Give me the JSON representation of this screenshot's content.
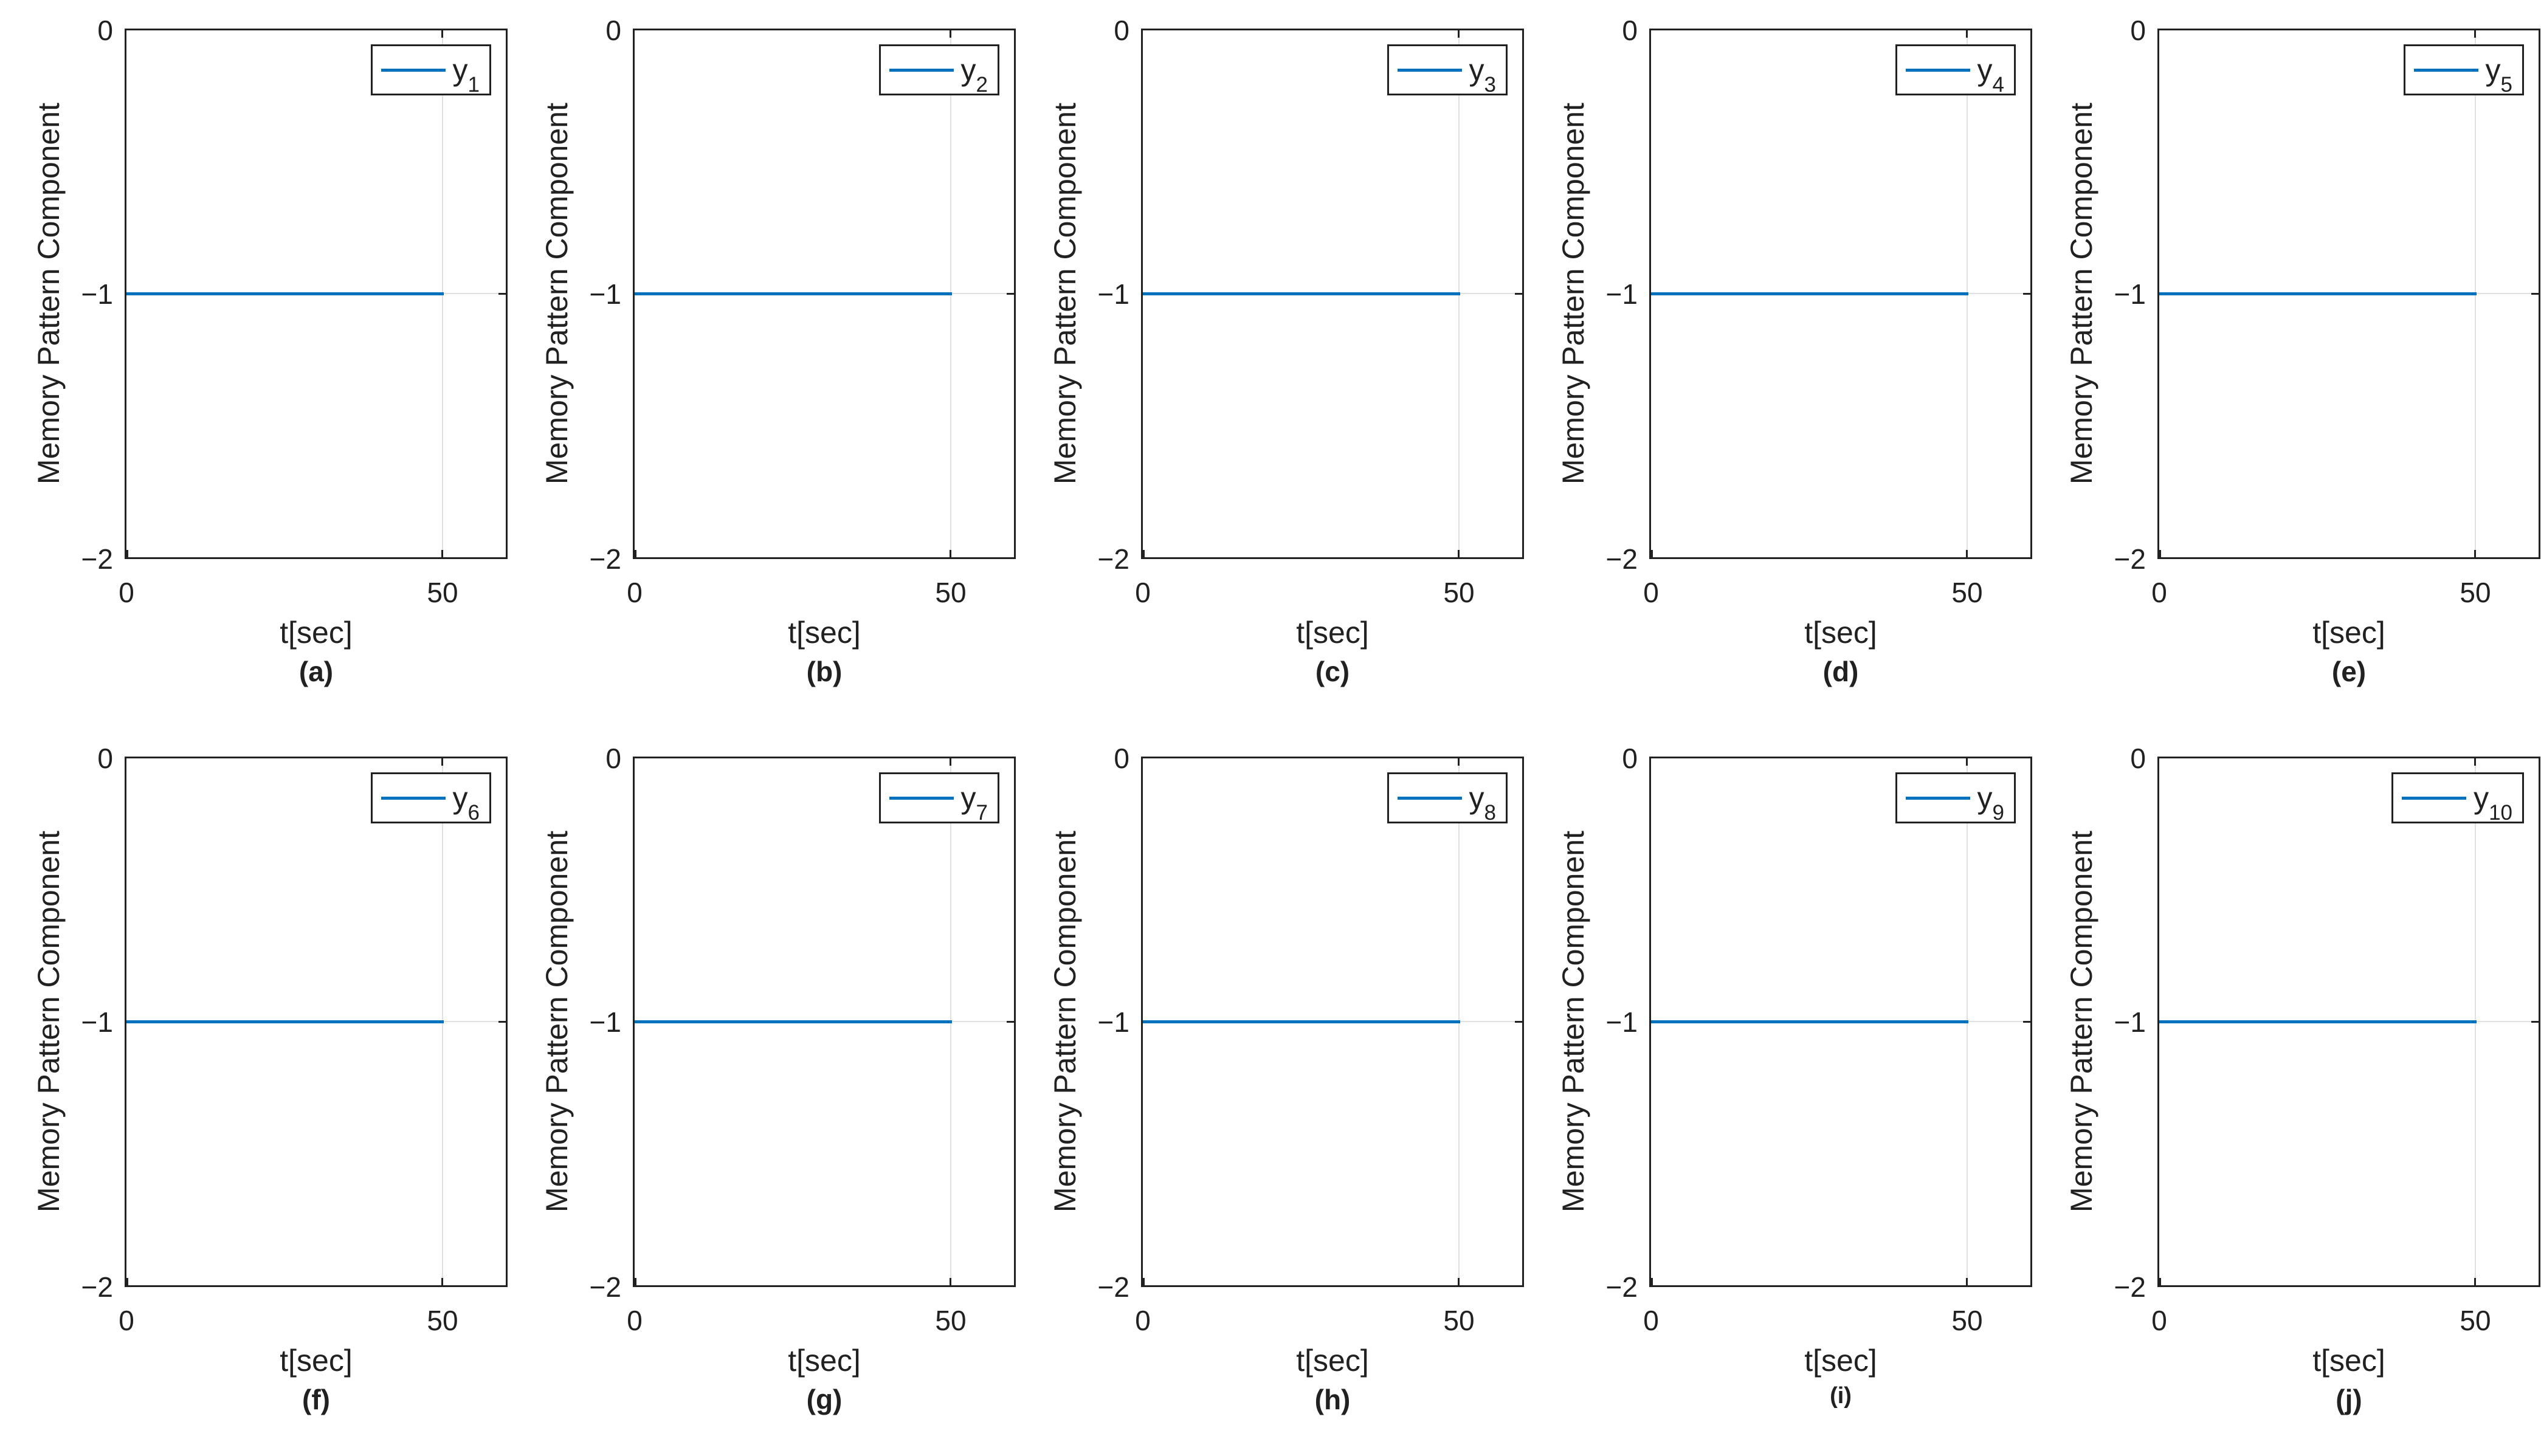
{
  "figure": {
    "rows": 2,
    "columns": 5,
    "background": "#FFFFFF"
  },
  "colors": {
    "line": "#0072BD",
    "axis": "#212121",
    "grid": "#E0E0E0",
    "text": "#212121",
    "background": "#FFFFFF"
  },
  "axes": {
    "ylabel": "Memory Pattern Component",
    "xlabel": "t[sec]",
    "ytick_labels": [
      "0",
      "−1",
      "−2"
    ],
    "xtick_labels": [
      "0",
      "50"
    ]
  },
  "subplots": [
    {
      "caption": "(a)",
      "legend_base": "y",
      "legend_sub": "1"
    },
    {
      "caption": "(b)",
      "legend_base": "y",
      "legend_sub": "2"
    },
    {
      "caption": "(c)",
      "legend_base": "y",
      "legend_sub": "3"
    },
    {
      "caption": "(d)",
      "legend_base": "y",
      "legend_sub": "4"
    },
    {
      "caption": "(e)",
      "legend_base": "y",
      "legend_sub": "5"
    },
    {
      "caption": "(f)",
      "legend_base": "y",
      "legend_sub": "6"
    },
    {
      "caption": "(g)",
      "legend_base": "y",
      "legend_sub": "7"
    },
    {
      "caption": "(h)",
      "legend_base": "y",
      "legend_sub": "8"
    },
    {
      "caption": "(i)",
      "legend_base": "y",
      "legend_sub": "9"
    },
    {
      "caption": "(j)",
      "legend_base": "y",
      "legend_sub": "10"
    }
  ],
  "chart_data": {
    "type": "line",
    "layout": "2x5 subplot grid",
    "title": "",
    "xlabel": "t[sec]",
    "ylabel": "Memory Pattern Component",
    "xlim": [
      0,
      60
    ],
    "ylim": [
      -2,
      0
    ],
    "xticks": [
      0,
      50
    ],
    "yticks": [
      0,
      -1,
      -2
    ],
    "grid": true,
    "legend_position": "top-right",
    "line_color": "#0072BD",
    "subplots": [
      {
        "caption": "(a)",
        "series": [
          {
            "name": "y_1",
            "x": [
              0,
              50
            ],
            "y": [
              -1,
              -1
            ]
          }
        ]
      },
      {
        "caption": "(b)",
        "series": [
          {
            "name": "y_2",
            "x": [
              0,
              50
            ],
            "y": [
              -1,
              -1
            ]
          }
        ]
      },
      {
        "caption": "(c)",
        "series": [
          {
            "name": "y_3",
            "x": [
              0,
              50
            ],
            "y": [
              -1,
              -1
            ]
          }
        ]
      },
      {
        "caption": "(d)",
        "series": [
          {
            "name": "y_4",
            "x": [
              0,
              50
            ],
            "y": [
              -1,
              -1
            ]
          }
        ]
      },
      {
        "caption": "(e)",
        "series": [
          {
            "name": "y_5",
            "x": [
              0,
              50
            ],
            "y": [
              -1,
              -1
            ]
          }
        ]
      },
      {
        "caption": "(f)",
        "series": [
          {
            "name": "y_6",
            "x": [
              0,
              50
            ],
            "y": [
              -1,
              -1
            ]
          }
        ]
      },
      {
        "caption": "(g)",
        "series": [
          {
            "name": "y_7",
            "x": [
              0,
              50
            ],
            "y": [
              -1,
              -1
            ]
          }
        ]
      },
      {
        "caption": "(h)",
        "series": [
          {
            "name": "y_8",
            "x": [
              0,
              50
            ],
            "y": [
              -1,
              -1
            ]
          }
        ]
      },
      {
        "caption": "(i)",
        "series": [
          {
            "name": "y_9",
            "x": [
              0,
              50
            ],
            "y": [
              -1,
              -1
            ]
          }
        ]
      },
      {
        "caption": "(j)",
        "series": [
          {
            "name": "y_10",
            "x": [
              0,
              50
            ],
            "y": [
              -1,
              -1
            ]
          }
        ]
      }
    ]
  }
}
